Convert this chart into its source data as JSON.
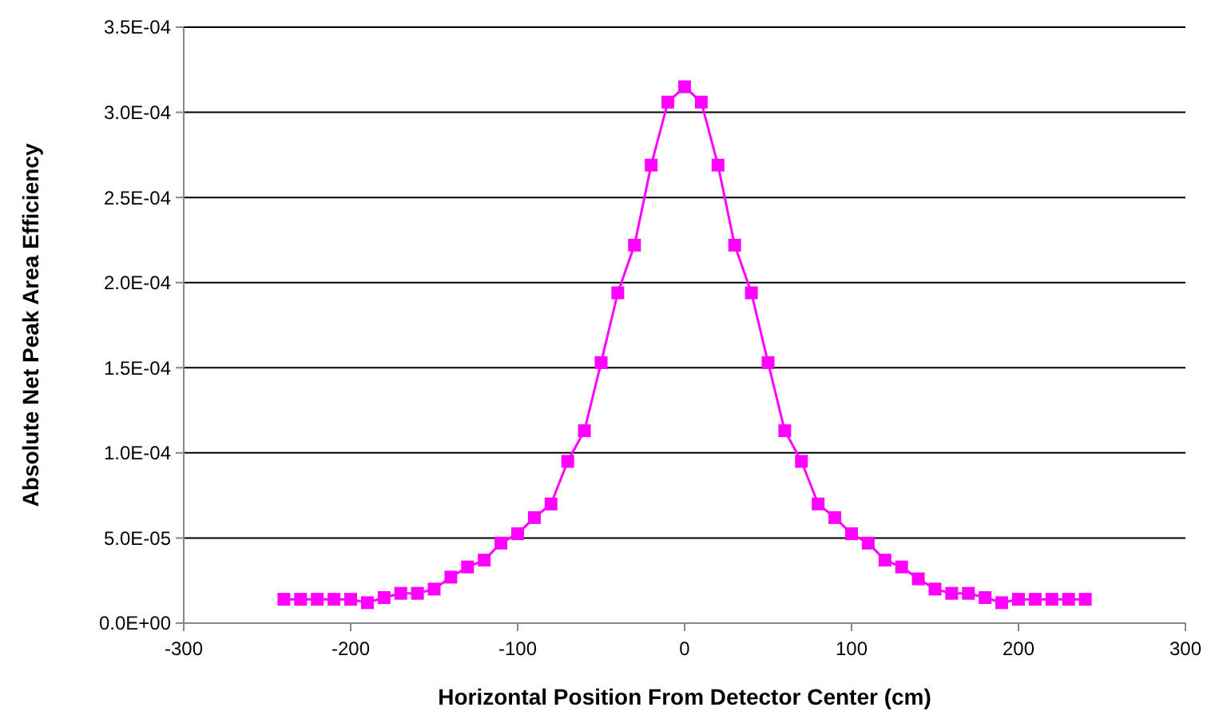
{
  "chart_data": {
    "type": "line",
    "xlabel": "Horizontal Position From Detector Center (cm)",
    "ylabel": "Absolute Net Peak Area Efficiency",
    "x": [
      -240,
      -230,
      -220,
      -210,
      -200,
      -190,
      -180,
      -170,
      -160,
      -150,
      -140,
      -130,
      -120,
      -110,
      -100,
      -90,
      -80,
      -70,
      -60,
      -50,
      -40,
      -30,
      -20,
      -10,
      0,
      10,
      20,
      30,
      40,
      50,
      60,
      70,
      80,
      90,
      100,
      110,
      120,
      130,
      140,
      150,
      160,
      170,
      180,
      190,
      200,
      210,
      220,
      230,
      240
    ],
    "series": [
      {
        "color": "#ff00ff",
        "values": [
          1.4e-05,
          1.4e-05,
          1.4e-05,
          1.4e-05,
          1.4e-05,
          1.2e-05,
          1.5e-05,
          1.75e-05,
          1.75e-05,
          2e-05,
          2.7e-05,
          3.3e-05,
          3.7e-05,
          4.7e-05,
          5.25e-05,
          6.2e-05,
          7e-05,
          9.5e-05,
          0.000113,
          0.000153,
          0.000194,
          0.000222,
          0.000269,
          0.000306,
          0.000315,
          0.000306,
          0.000269,
          0.000222,
          0.000194,
          0.000153,
          0.000113,
          9.5e-05,
          7e-05,
          6.2e-05,
          5.25e-05,
          4.7e-05,
          3.7e-05,
          3.3e-05,
          2.6e-05,
          2e-05,
          1.75e-05,
          1.75e-05,
          1.5e-05,
          1.2e-05,
          1.4e-05,
          1.4e-05,
          1.4e-05,
          1.4e-05,
          1.4e-05
        ]
      }
    ],
    "xlim": [
      -300,
      300
    ],
    "xticks": [
      -300,
      -200,
      -100,
      0,
      100,
      200,
      300
    ],
    "ylim": [
      0,
      0.00035
    ],
    "yticks": [
      {
        "value": 0,
        "label": "0.0E+00"
      },
      {
        "value": 5e-05,
        "label": "5.0E-05"
      },
      {
        "value": 0.0001,
        "label": "1.0E-04"
      },
      {
        "value": 0.00015,
        "label": "1.5E-04"
      },
      {
        "value": 0.0002,
        "label": "2.0E-04"
      },
      {
        "value": 0.00025,
        "label": "2.5E-04"
      },
      {
        "value": 0.0003,
        "label": "3.0E-04"
      },
      {
        "value": 0.00035,
        "label": "3.5E-04"
      }
    ],
    "grid": "y",
    "marker": "square",
    "line_style": "solid"
  }
}
